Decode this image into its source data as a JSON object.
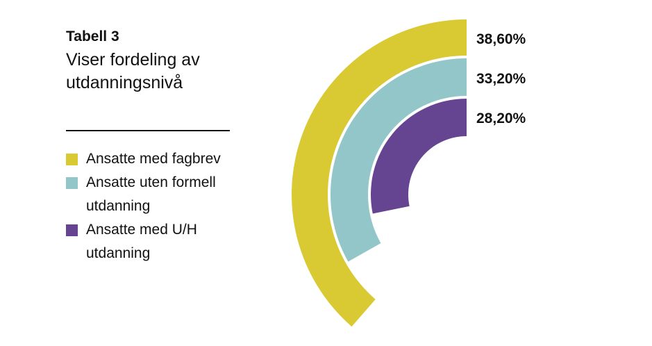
{
  "header": {
    "table_label": "Tabell 3",
    "subtitle": "Viser fordeling av utdanningsnivå"
  },
  "chart_data": {
    "type": "radial-bar",
    "series": [
      {
        "name": "Ansatte med fagbrev",
        "value": 38.6,
        "label": "38,60%",
        "color": "#d9c932"
      },
      {
        "name": "Ansatte uten formell utdanning",
        "value": 33.2,
        "label": "33,20%",
        "color": "#92c6c8"
      },
      {
        "name": "Ansatte med U/H utdanning",
        "value": 28.2,
        "label": "28,20%",
        "color": "#654591"
      }
    ]
  },
  "legend": {
    "items": [
      {
        "label": "Ansatte med fagbrev",
        "color": "#d9c932"
      },
      {
        "label": "Ansatte uten formell utdanning",
        "color": "#92c6c8"
      },
      {
        "label": "Ansatte med U/H utdanning",
        "color": "#654591"
      }
    ]
  }
}
